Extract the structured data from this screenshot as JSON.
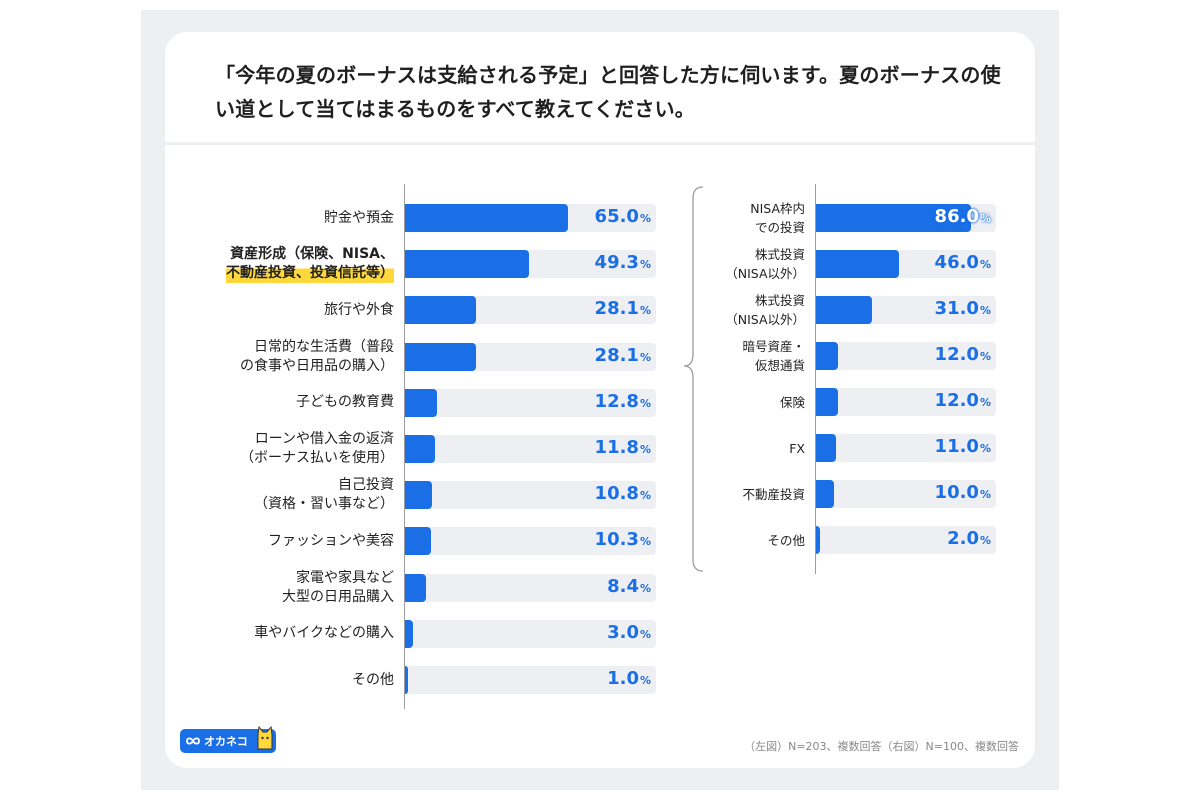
{
  "question": "「今年の夏のボーナスは支給される予定」と回答した方に伺います。夏のボーナスの使い道として当てはまるものをすべて教えてください。",
  "footnote": "（左図）N=203、複数回答（右図）N=100、複数回答",
  "logo_text": "オカネコ",
  "icons": {
    "logo": "infinity-icon",
    "mascot": "cat-mascot-icon"
  },
  "colors": {
    "bar": "#1a6fe6",
    "track": "#eeeff2",
    "highlight": "#ffd93b"
  },
  "chart_data": [
    {
      "type": "bar",
      "orientation": "horizontal",
      "categories": [
        "貯金や預金",
        "資産形成（保険、NISA、\n不動産投資、投資信託等）",
        "旅行や外食",
        "日常的な生活費（普段\nの食事や日用品の購入）",
        "子どもの教育費",
        "ローンや借入金の返済\n（ボーナス払いを使用）",
        "自己投資\n（資格・習い事など）",
        "ファッションや美容",
        "家電や家具など\n大型の日用品購入",
        "車やバイクなどの購入",
        "その他"
      ],
      "values": [
        65.0,
        49.3,
        28.1,
        28.1,
        12.8,
        11.8,
        10.8,
        10.3,
        8.4,
        3.0,
        1.0
      ],
      "value_labels": [
        "65.0",
        "49.3",
        "28.1",
        "28.1",
        "12.8",
        "11.8",
        "10.8",
        "10.3",
        "8.4",
        "3.0",
        "1.0"
      ],
      "unit": "%",
      "highlighted_index": 1,
      "xlim": [
        0,
        100
      ]
    },
    {
      "type": "bar",
      "orientation": "horizontal",
      "categories": [
        "NISA枠内\nでの投資",
        "株式投資\n（NISA以外）",
        "株式投資\n（NISA以外）",
        "暗号資産・\n仮想通貨",
        "保険",
        "FX",
        "不動産投資",
        "その他"
      ],
      "values": [
        86.0,
        46.0,
        31.0,
        12.0,
        12.0,
        11.0,
        10.0,
        2.0
      ],
      "value_labels": [
        "86.0",
        "46.0",
        "31.0",
        "12.0",
        "12.0",
        "11.0",
        "10.0",
        "2.0"
      ],
      "unit": "%",
      "xlim": [
        0,
        100
      ]
    }
  ]
}
